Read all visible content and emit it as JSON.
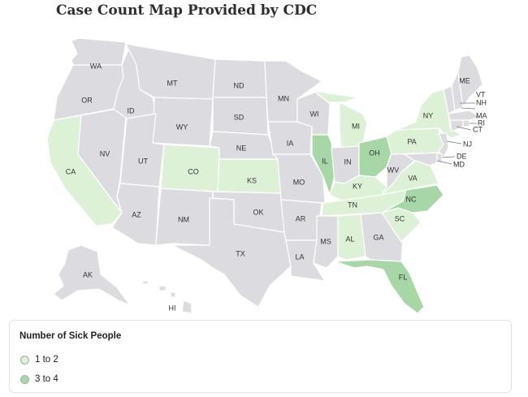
{
  "title": "Case Count Map Provided by CDC",
  "colors": {
    "no_cases": "#dcdce0",
    "range_1_2": "#dcf1d6",
    "range_3_4": "#a7d7a6",
    "border": "#ffffff"
  },
  "states": [
    {
      "abbr": "WA",
      "range": "none"
    },
    {
      "abbr": "OR",
      "range": "none"
    },
    {
      "abbr": "CA",
      "range": "1 to 2"
    },
    {
      "abbr": "NV",
      "range": "none"
    },
    {
      "abbr": "ID",
      "range": "none"
    },
    {
      "abbr": "MT",
      "range": "none"
    },
    {
      "abbr": "WY",
      "range": "none"
    },
    {
      "abbr": "UT",
      "range": "none"
    },
    {
      "abbr": "AZ",
      "range": "none"
    },
    {
      "abbr": "CO",
      "range": "1 to 2"
    },
    {
      "abbr": "NM",
      "range": "none"
    },
    {
      "abbr": "ND",
      "range": "none"
    },
    {
      "abbr": "SD",
      "range": "none"
    },
    {
      "abbr": "NE",
      "range": "none"
    },
    {
      "abbr": "KS",
      "range": "1 to 2"
    },
    {
      "abbr": "OK",
      "range": "none"
    },
    {
      "abbr": "TX",
      "range": "none"
    },
    {
      "abbr": "MN",
      "range": "none"
    },
    {
      "abbr": "IA",
      "range": "none"
    },
    {
      "abbr": "MO",
      "range": "none"
    },
    {
      "abbr": "AR",
      "range": "none"
    },
    {
      "abbr": "LA",
      "range": "none"
    },
    {
      "abbr": "WI",
      "range": "none"
    },
    {
      "abbr": "IL",
      "range": "3 to 4"
    },
    {
      "abbr": "MI",
      "range": "1 to 2"
    },
    {
      "abbr": "IN",
      "range": "none"
    },
    {
      "abbr": "OH",
      "range": "3 to 4"
    },
    {
      "abbr": "KY",
      "range": "1 to 2"
    },
    {
      "abbr": "TN",
      "range": "1 to 2"
    },
    {
      "abbr": "MS",
      "range": "none"
    },
    {
      "abbr": "AL",
      "range": "1 to 2"
    },
    {
      "abbr": "GA",
      "range": "none"
    },
    {
      "abbr": "FL",
      "range": "3 to 4"
    },
    {
      "abbr": "SC",
      "range": "1 to 2"
    },
    {
      "abbr": "NC",
      "range": "3 to 4"
    },
    {
      "abbr": "VA",
      "range": "1 to 2"
    },
    {
      "abbr": "WV",
      "range": "none"
    },
    {
      "abbr": "PA",
      "range": "1 to 2"
    },
    {
      "abbr": "NY",
      "range": "1 to 2"
    },
    {
      "abbr": "VT",
      "range": "none"
    },
    {
      "abbr": "NH",
      "range": "none"
    },
    {
      "abbr": "ME",
      "range": "none"
    },
    {
      "abbr": "MA",
      "range": "none"
    },
    {
      "abbr": "RI",
      "range": "none"
    },
    {
      "abbr": "CT",
      "range": "none"
    },
    {
      "abbr": "NJ",
      "range": "none"
    },
    {
      "abbr": "DE",
      "range": "none"
    },
    {
      "abbr": "MD",
      "range": "none"
    },
    {
      "abbr": "AK",
      "range": "none"
    },
    {
      "abbr": "HI",
      "range": "none"
    }
  ],
  "legend": {
    "title": "Number of Sick People",
    "items": [
      {
        "label": "1 to 2",
        "color": "#dcf1d6"
      },
      {
        "label": "3 to 4",
        "color": "#a7d7a6"
      }
    ]
  }
}
